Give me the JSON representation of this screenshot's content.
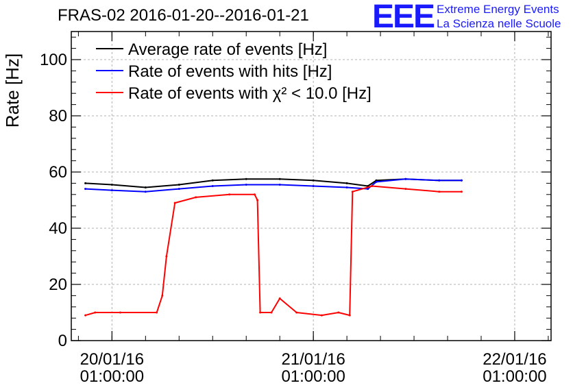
{
  "header": {
    "title": "FRAS-02 2016-01-20--2016-01-21",
    "logo_text": "EEE",
    "logo_line1": "Extreme Energy Events",
    "logo_line2": "La Scienza nelle Scuole"
  },
  "colors": {
    "average": "#000000",
    "hits": "#0000ff",
    "chi2": "#ff0000",
    "logo": "#1a1aff",
    "grid": "#b0b0b0"
  },
  "chart_data": {
    "type": "line",
    "title": "FRAS-02 2016-01-20--2016-01-21",
    "xlabel": "",
    "ylabel": "Rate [Hz]",
    "ylim": [
      0,
      110
    ],
    "xlim": [
      "2016-01-19T20:09:00",
      "2016-01-22T05:20:00"
    ],
    "yticks": [
      0,
      20,
      40,
      60,
      80,
      100
    ],
    "xticks": [
      {
        "value": "2016-01-20T01:00:00",
        "line1": "20/01/16",
        "line2": "01:00:00"
      },
      {
        "value": "2016-01-21T01:00:00",
        "line1": "21/01/16",
        "line2": "01:00:00"
      },
      {
        "value": "2016-01-22T01:00:00",
        "line1": "22/01/16",
        "line2": "01:00:00"
      }
    ],
    "grid": true,
    "legend_position": "top-left",
    "series": [
      {
        "name": "Average rate of events [Hz]",
        "color": "#000000",
        "x": [
          "2016-01-19T21:50:00",
          "2016-01-20T01:00:00",
          "2016-01-20T05:00:00",
          "2016-01-20T09:00:00",
          "2016-01-20T13:00:00",
          "2016-01-20T17:00:00",
          "2016-01-20T21:00:00",
          "2016-01-21T01:00:00",
          "2016-01-21T05:00:00",
          "2016-01-21T07:30:00",
          "2016-01-21T08:30:00",
          "2016-01-21T12:00:00",
          "2016-01-21T16:00:00",
          "2016-01-21T18:40:00"
        ],
        "y": [
          56,
          55.5,
          54.5,
          55.5,
          57,
          57.5,
          57.5,
          57,
          56,
          55,
          57,
          57.5,
          57,
          57
        ]
      },
      {
        "name": "Rate of events with hits [Hz]",
        "color": "#0000ff",
        "x": [
          "2016-01-19T21:50:00",
          "2016-01-20T01:00:00",
          "2016-01-20T05:00:00",
          "2016-01-20T09:00:00",
          "2016-01-20T13:00:00",
          "2016-01-20T17:00:00",
          "2016-01-20T21:00:00",
          "2016-01-21T01:00:00",
          "2016-01-21T05:00:00",
          "2016-01-21T07:30:00",
          "2016-01-21T08:30:00",
          "2016-01-21T12:00:00",
          "2016-01-21T16:00:00",
          "2016-01-21T18:40:00"
        ],
        "y": [
          54,
          53.5,
          53,
          54,
          55,
          55.5,
          55.5,
          55,
          54.5,
          54,
          56.5,
          57.5,
          57,
          57
        ]
      },
      {
        "name": "Rate of events with χ² < 10.0 [Hz]",
        "color": "#ff0000",
        "x": [
          "2016-01-19T21:50:00",
          "2016-01-19T23:00:00",
          "2016-01-20T02:00:00",
          "2016-01-20T06:20:00",
          "2016-01-20T07:00:00",
          "2016-01-20T07:30:00",
          "2016-01-20T08:30:00",
          "2016-01-20T11:00:00",
          "2016-01-20T15:00:00",
          "2016-01-20T18:00:00",
          "2016-01-20T18:20:00",
          "2016-01-20T18:40:00",
          "2016-01-20T20:00:00",
          "2016-01-20T21:00:00",
          "2016-01-20T23:00:00",
          "2016-01-21T02:00:00",
          "2016-01-21T04:00:00",
          "2016-01-21T05:20:00",
          "2016-01-21T05:40:00",
          "2016-01-21T08:00:00",
          "2016-01-21T12:00:00",
          "2016-01-21T16:00:00",
          "2016-01-21T18:40:00"
        ],
        "y": [
          9,
          10,
          10,
          10,
          16,
          30,
          49,
          51,
          52,
          52,
          50,
          10,
          10,
          15,
          10,
          9,
          10,
          9,
          53,
          55,
          54,
          53,
          53
        ]
      }
    ]
  }
}
